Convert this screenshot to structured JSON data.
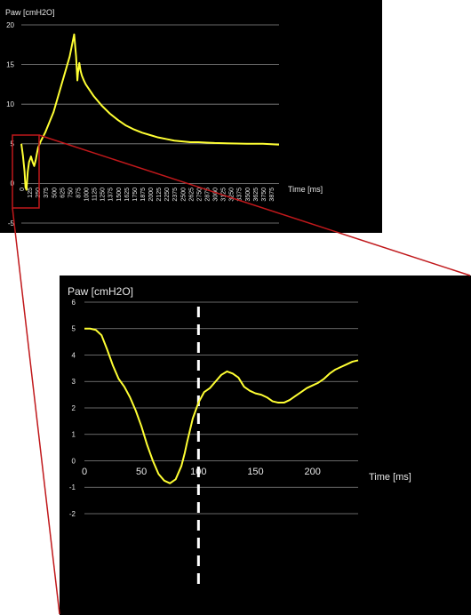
{
  "colors": {
    "background": "#000000",
    "series": "#ffff33",
    "grid": "#8a8a8a",
    "text": "#e6e6e6",
    "callout": "#c0181b",
    "marker": "#ffffff"
  },
  "chart_data": [
    {
      "type": "line",
      "ylabel": "Paw [cmH2O]",
      "xlabel": "Time [ms]",
      "ylim": [
        -5,
        20
      ],
      "yticks": [
        -5,
        0,
        5,
        10,
        15,
        20
      ],
      "xlim": [
        0,
        4000
      ],
      "xticks": [
        0,
        125,
        250,
        375,
        500,
        625,
        750,
        875,
        1000,
        1125,
        1250,
        1375,
        1500,
        1625,
        1750,
        1875,
        2000,
        2125,
        2250,
        2375,
        2500,
        2625,
        2750,
        2875,
        3000,
        3125,
        3250,
        3375,
        3500,
        3625,
        3750,
        3875
      ],
      "grid": true,
      "series": [
        {
          "x": [
            0,
            25,
            50,
            65,
            80,
            100,
            120,
            150,
            175,
            200,
            225,
            240,
            260,
            300,
            375,
            500,
            625,
            750,
            820,
            850,
            870,
            880,
            900,
            920,
            940,
            970,
            1000,
            1125,
            1250,
            1375,
            1500,
            1625,
            1750,
            1875,
            2000,
            2125,
            2250,
            2375,
            2500,
            2625,
            2750,
            2875,
            3000,
            3250,
            3500,
            3750,
            4000
          ],
          "y": [
            5,
            3.5,
            1.5,
            -0.5,
            -0.8,
            1.5,
            2.7,
            3.4,
            2.7,
            2.2,
            3.0,
            3.7,
            4.5,
            5.3,
            6.5,
            9.0,
            12.5,
            16.0,
            18.8,
            16.0,
            13.0,
            14.0,
            15.2,
            14.2,
            13.6,
            13.0,
            12.5,
            11.0,
            9.8,
            8.8,
            8.0,
            7.3,
            6.8,
            6.4,
            6.1,
            5.8,
            5.6,
            5.4,
            5.3,
            5.2,
            5.2,
            5.15,
            5.1,
            5.05,
            5.0,
            5.0,
            4.9
          ]
        }
      ]
    },
    {
      "type": "line",
      "ylabel": "Paw [cmH2O]",
      "xlabel": "Time [ms]",
      "ylim": [
        -2,
        6
      ],
      "yticks": [
        -2,
        -1,
        0,
        1,
        2,
        3,
        4,
        5,
        6
      ],
      "xlim": [
        0,
        240
      ],
      "xticks": [
        0,
        50,
        100,
        150,
        200
      ],
      "grid": true,
      "marker_x": 100,
      "series": [
        {
          "x": [
            0,
            5,
            10,
            15,
            20,
            25,
            30,
            35,
            40,
            45,
            50,
            55,
            60,
            65,
            70,
            75,
            80,
            85,
            88,
            90,
            95,
            100,
            105,
            110,
            115,
            120,
            125,
            130,
            135,
            140,
            145,
            150,
            155,
            160,
            165,
            170,
            175,
            180,
            185,
            190,
            195,
            200,
            205,
            210,
            215,
            220,
            225,
            230,
            235,
            240
          ],
          "y": [
            5.0,
            5.0,
            4.95,
            4.75,
            4.2,
            3.6,
            3.1,
            2.8,
            2.4,
            1.9,
            1.3,
            0.6,
            0.0,
            -0.5,
            -0.75,
            -0.85,
            -0.7,
            -0.2,
            0.3,
            0.7,
            1.6,
            2.2,
            2.6,
            2.75,
            3.0,
            3.25,
            3.38,
            3.3,
            3.15,
            2.8,
            2.65,
            2.55,
            2.5,
            2.4,
            2.25,
            2.2,
            2.2,
            2.3,
            2.45,
            2.6,
            2.75,
            2.85,
            2.95,
            3.1,
            3.3,
            3.45,
            3.55,
            3.65,
            3.75,
            3.8
          ]
        }
      ]
    }
  ]
}
